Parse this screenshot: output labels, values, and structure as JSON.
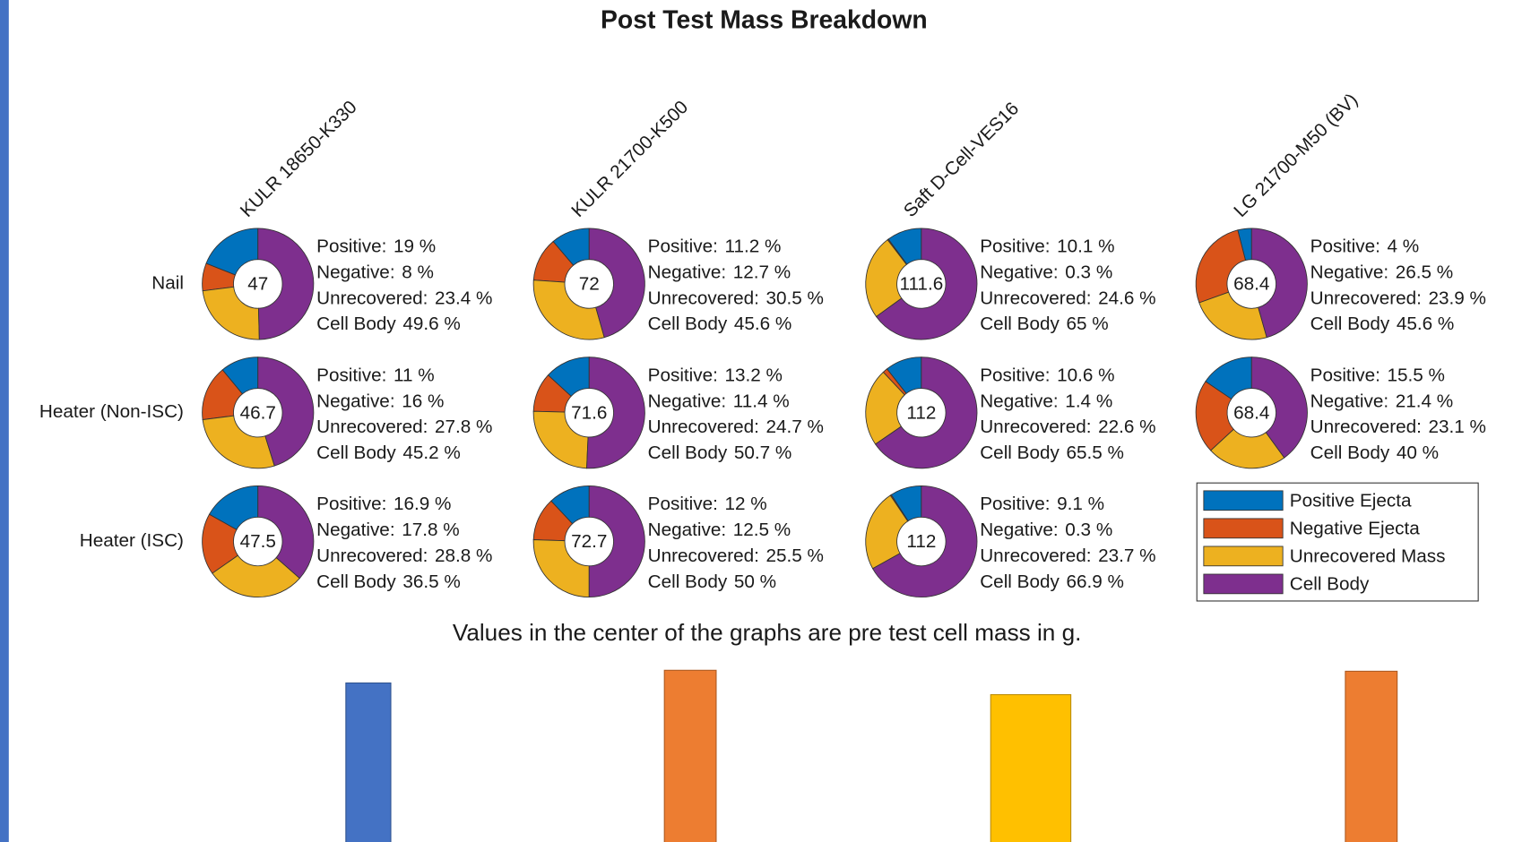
{
  "chart_data": {
    "type": "donut",
    "title": "Post Test Mass Breakdown",
    "columns": [
      "KULR 18650-K330",
      "KULR 21700-K500",
      "Saft D-Cell-VES16",
      "LG 21700-M50 (BV)"
    ],
    "rows": [
      "Nail",
      "Heater (Non-ISC)",
      "Heater (ISC)"
    ],
    "label_names": [
      "Positive:",
      "Negative:",
      "Unrecovered:",
      "Cell Body"
    ],
    "series": [
      {
        "name": "Positive Ejecta",
        "color": "#0072bd"
      },
      {
        "name": "Negative Ejecta",
        "color": "#d95319"
      },
      {
        "name": "Unrecovered Mass",
        "color": "#edb120"
      },
      {
        "name": "Cell Body",
        "color": "#7e2f8e"
      }
    ],
    "cells": [
      [
        {
          "mass": 47,
          "values": [
            19,
            8,
            23.4,
            49.6
          ],
          "value_labels": [
            "19 %",
            "8 %",
            "23.4 %",
            "49.6 %"
          ]
        },
        {
          "mass": 72,
          "values": [
            11.2,
            12.7,
            30.5,
            45.6
          ],
          "value_labels": [
            "11.2 %",
            "12.7 %",
            "30.5 %",
            "45.6 %"
          ]
        },
        {
          "mass": 111.6,
          "values": [
            10.1,
            0.3,
            24.6,
            65
          ],
          "value_labels": [
            "10.1 %",
            "0.3 %",
            "24.6 %",
            "65 %"
          ]
        },
        {
          "mass": 68.4,
          "values": [
            4,
            26.5,
            23.9,
            45.6
          ],
          "value_labels": [
            "4 %",
            "26.5 %",
            "23.9 %",
            "45.6 %"
          ]
        }
      ],
      [
        {
          "mass": 46.7,
          "values": [
            11,
            16,
            27.8,
            45.2
          ],
          "value_labels": [
            "11 %",
            "16 %",
            "27.8 %",
            "45.2 %"
          ]
        },
        {
          "mass": 71.6,
          "values": [
            13.2,
            11.4,
            24.7,
            50.7
          ],
          "value_labels": [
            "13.2 %",
            "11.4 %",
            "24.7 %",
            "50.7 %"
          ]
        },
        {
          "mass": 112,
          "values": [
            10.6,
            1.4,
            22.6,
            65.5
          ],
          "value_labels": [
            "10.6 %",
            "1.4 %",
            "22.6 %",
            "65.5 %"
          ]
        },
        {
          "mass": 68.4,
          "values": [
            15.5,
            21.4,
            23.1,
            40
          ],
          "value_labels": [
            "15.5 %",
            "21.4 %",
            "23.1 %",
            "40 %"
          ]
        }
      ],
      [
        {
          "mass": 47.5,
          "values": [
            16.9,
            17.8,
            28.8,
            36.5
          ],
          "value_labels": [
            "16.9 %",
            "17.8 %",
            "28.8 %",
            "36.5 %"
          ]
        },
        {
          "mass": 72.7,
          "values": [
            12,
            12.5,
            25.5,
            50
          ],
          "value_labels": [
            "12 %",
            "12.5 %",
            "25.5 %",
            "50 %"
          ]
        },
        {
          "mass": 112,
          "values": [
            9.1,
            0.3,
            23.7,
            66.9
          ],
          "value_labels": [
            "9.1 %",
            "0.3 %",
            "23.7 %",
            "66.9 %"
          ]
        }
      ]
    ],
    "note": "Values in the center of the graphs are pre test cell mass in g."
  }
}
